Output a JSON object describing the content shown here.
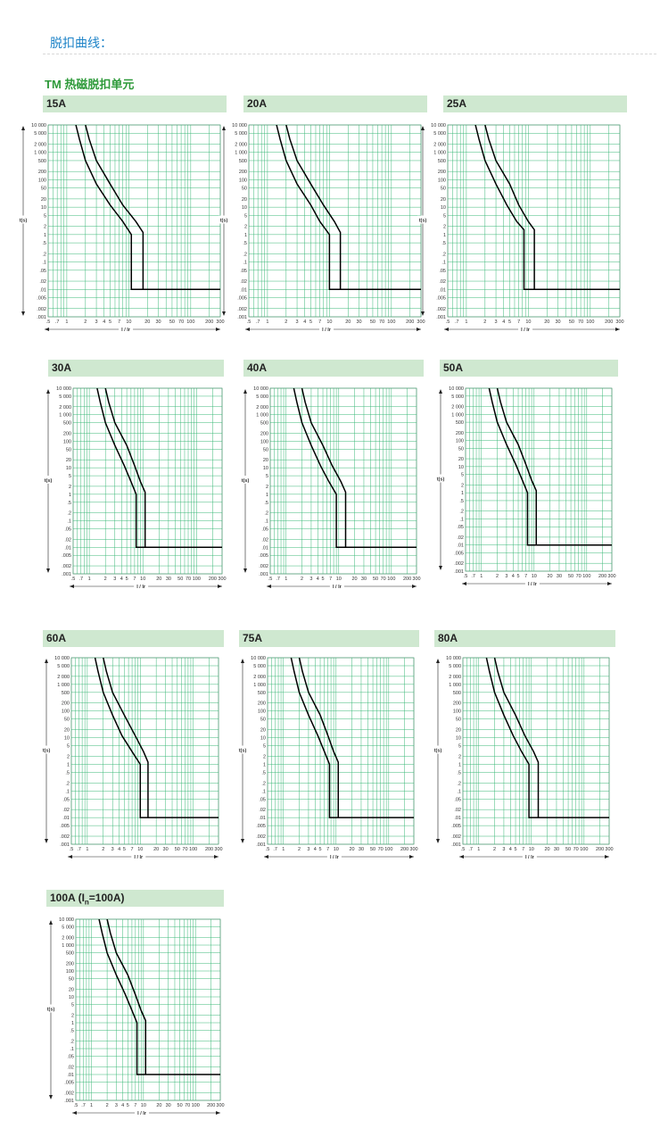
{
  "header": {
    "title": "脱扣曲线："
  },
  "section": {
    "title": "TM 热磁脱扣单元"
  },
  "colors": {
    "grid": "#3cb878",
    "curve": "#000000",
    "header_bg": "#cfe8d0",
    "title_blue": "#1f84c8",
    "title_green": "#2e9a3a"
  },
  "axis": {
    "ylabel": "t(s)",
    "xlabel": "I / Ir",
    "y_ticks": [
      "10 000",
      "5 000",
      "2 000",
      "1 000",
      "500",
      "200",
      "100",
      "50",
      "20",
      "10",
      "5",
      "2",
      "1",
      ".5",
      ".2",
      ".1",
      ".05",
      ".02",
      ".01",
      ".005",
      ".002",
      ".001"
    ],
    "x_ticks": [
      ".5",
      ".7",
      "1",
      "2",
      "3",
      "4",
      "5",
      "7",
      "10",
      "20",
      "30",
      "50",
      "70",
      "100",
      "200",
      "300"
    ]
  },
  "panels": [
    {
      "label": "15A"
    },
    {
      "label": "20A"
    },
    {
      "label": "25A"
    },
    {
      "label": "30A"
    },
    {
      "label": "40A"
    },
    {
      "label": "50A"
    },
    {
      "label": "60A"
    },
    {
      "label": "75A"
    },
    {
      "label": "80A"
    },
    {
      "label": "100A (I",
      "label_sub": "n",
      "label_tail": "=100A)"
    }
  ],
  "chart_data": [
    {
      "type": "line",
      "title": "15A",
      "xlabel": "I / Ir",
      "ylabel": "t(s)",
      "x_scale": "log",
      "y_scale": "log",
      "xlim": [
        0.5,
        300
      ],
      "ylim": [
        0.001,
        10000
      ],
      "grid": true,
      "series": [
        {
          "x": [
            1.4,
            1.6,
            2,
            3,
            5,
            8,
            11,
            11,
            11,
            300
          ],
          "y": [
            10000,
            3000,
            500,
            70,
            12,
            3,
            1,
            0.2,
            0.01,
            0.01
          ]
        },
        {
          "x": [
            2.0,
            2.3,
            3,
            5,
            8,
            13,
            17,
            17,
            17
          ],
          "y": [
            10000,
            3000,
            500,
            70,
            12,
            3,
            1.2,
            0.3,
            0.01
          ]
        }
      ]
    },
    {
      "type": "line",
      "title": "20A",
      "xlabel": "I / Ir",
      "ylabel": "t(s)",
      "x_scale": "log",
      "y_scale": "log",
      "xlim": [
        0.5,
        300
      ],
      "ylim": [
        0.001,
        10000
      ],
      "grid": true,
      "series": [
        {
          "x": [
            1.4,
            1.6,
            2,
            3,
            5,
            7,
            10,
            10,
            10,
            300
          ],
          "y": [
            10000,
            3000,
            500,
            70,
            12,
            3,
            1,
            0.3,
            0.01,
            0.01
          ]
        },
        {
          "x": [
            2.0,
            2.3,
            3,
            5,
            8,
            12,
            15,
            15,
            15
          ],
          "y": [
            10000,
            3000,
            500,
            70,
            12,
            3,
            1.2,
            0.3,
            0.01
          ]
        }
      ]
    },
    {
      "type": "line",
      "title": "25A",
      "xlabel": "I / Ir",
      "ylabel": "t(s)",
      "x_scale": "log",
      "y_scale": "log",
      "xlim": [
        0.5,
        300
      ],
      "ylim": [
        0.001,
        10000
      ],
      "grid": true,
      "series": [
        {
          "x": [
            1.4,
            1.6,
            2,
            3,
            4.5,
            6.5,
            8.5,
            8.5,
            8.5,
            300
          ],
          "y": [
            10000,
            3000,
            500,
            70,
            12,
            3,
            1.5,
            0.3,
            0.01,
            0.01
          ]
        },
        {
          "x": [
            2.0,
            2.3,
            3,
            5,
            7,
            10,
            12.5,
            12.5,
            12.5
          ],
          "y": [
            10000,
            3000,
            500,
            70,
            12,
            3,
            1.5,
            0.3,
            0.01
          ]
        }
      ]
    },
    {
      "type": "line",
      "title": "30A",
      "xlabel": "I / Ir",
      "ylabel": "t(s)",
      "x_scale": "log",
      "y_scale": "log",
      "xlim": [
        0.5,
        300
      ],
      "ylim": [
        0.001,
        10000
      ],
      "grid": true,
      "series": [
        {
          "x": [
            1.4,
            1.6,
            2,
            3,
            4.5,
            6,
            7.5,
            7.5,
            7.5,
            300
          ],
          "y": [
            10000,
            3000,
            500,
            70,
            12,
            3,
            1,
            0.3,
            0.01,
            0.01
          ]
        },
        {
          "x": [
            2.0,
            2.3,
            3,
            5,
            7,
            9,
            11,
            11,
            11
          ],
          "y": [
            10000,
            3000,
            500,
            70,
            12,
            3,
            1.2,
            0.3,
            0.01
          ]
        }
      ]
    },
    {
      "type": "line",
      "title": "40A",
      "xlabel": "I / Ir",
      "ylabel": "t(s)",
      "x_scale": "log",
      "y_scale": "log",
      "xlim": [
        0.5,
        300
      ],
      "ylim": [
        0.001,
        10000
      ],
      "grid": true,
      "series": [
        {
          "x": [
            1.4,
            1.6,
            2,
            3,
            4.5,
            6.5,
            9,
            9,
            9,
            300
          ],
          "y": [
            10000,
            3000,
            500,
            70,
            12,
            3,
            1,
            0.3,
            0.01,
            0.01
          ]
        },
        {
          "x": [
            2.0,
            2.3,
            3,
            5,
            7.5,
            11,
            13.5,
            13.5,
            13.5
          ],
          "y": [
            10000,
            3000,
            500,
            70,
            12,
            3,
            1.2,
            0.3,
            0.01
          ]
        }
      ]
    },
    {
      "type": "line",
      "title": "50A",
      "xlabel": "I / Ir",
      "ylabel": "t(s)",
      "x_scale": "log",
      "y_scale": "log",
      "xlim": [
        0.5,
        300
      ],
      "ylim": [
        0.001,
        10000
      ],
      "grid": true,
      "series": [
        {
          "x": [
            1.4,
            1.6,
            2,
            3,
            4.5,
            6,
            7.5,
            7.5,
            7.5,
            300
          ],
          "y": [
            10000,
            3000,
            500,
            70,
            12,
            3,
            1,
            0.3,
            0.01,
            0.01
          ]
        },
        {
          "x": [
            2.0,
            2.3,
            3,
            5,
            7,
            9,
            11,
            11,
            11
          ],
          "y": [
            10000,
            3000,
            500,
            70,
            12,
            3,
            1.2,
            0.3,
            0.01
          ]
        }
      ]
    },
    {
      "type": "line",
      "title": "60A",
      "xlabel": "I / Ir",
      "ylabel": "t(s)",
      "x_scale": "log",
      "y_scale": "log",
      "xlim": [
        0.5,
        300
      ],
      "ylim": [
        0.001,
        10000
      ],
      "grid": true,
      "series": [
        {
          "x": [
            1.4,
            1.6,
            2,
            3,
            4.5,
            7,
            10,
            10,
            10,
            300
          ],
          "y": [
            10000,
            3000,
            500,
            70,
            12,
            3,
            1,
            0.3,
            0.01,
            0.01
          ]
        },
        {
          "x": [
            2.0,
            2.3,
            3,
            5,
            8,
            11.5,
            14,
            14,
            14
          ],
          "y": [
            10000,
            3000,
            500,
            70,
            12,
            3,
            1.2,
            0.3,
            0.01
          ]
        }
      ]
    },
    {
      "type": "line",
      "title": "75A",
      "xlabel": "I / Ir",
      "ylabel": "t(s)",
      "x_scale": "log",
      "y_scale": "log",
      "xlim": [
        0.5,
        300
      ],
      "ylim": [
        0.001,
        10000
      ],
      "grid": true,
      "series": [
        {
          "x": [
            1.4,
            1.6,
            2,
            3,
            4.5,
            6,
            7.5,
            7.5,
            7.5,
            300
          ],
          "y": [
            10000,
            3000,
            500,
            70,
            12,
            3,
            1,
            0.3,
            0.01,
            0.01
          ]
        },
        {
          "x": [
            2.0,
            2.3,
            3,
            5,
            7,
            9,
            11,
            11,
            11
          ],
          "y": [
            10000,
            3000,
            500,
            70,
            12,
            3,
            1.2,
            0.3,
            0.01
          ]
        }
      ]
    },
    {
      "type": "line",
      "title": "80A",
      "xlabel": "I / Ir",
      "ylabel": "t(s)",
      "x_scale": "log",
      "y_scale": "log",
      "xlim": [
        0.5,
        300
      ],
      "ylim": [
        0.001,
        10000
      ],
      "grid": true,
      "series": [
        {
          "x": [
            1.4,
            1.6,
            2,
            3,
            4.5,
            6.5,
            9,
            9,
            9,
            300
          ],
          "y": [
            10000,
            3000,
            500,
            70,
            12,
            3,
            1,
            0.3,
            0.01,
            0.01
          ]
        },
        {
          "x": [
            2.0,
            2.3,
            3,
            5,
            7.5,
            11,
            13.5,
            13.5,
            13.5
          ],
          "y": [
            10000,
            3000,
            500,
            70,
            12,
            3,
            1.2,
            0.3,
            0.01
          ]
        }
      ]
    },
    {
      "type": "line",
      "title": "100A (In=100A)",
      "xlabel": "I / Ir",
      "ylabel": "t(s)",
      "x_scale": "log",
      "y_scale": "log",
      "xlim": [
        0.5,
        300
      ],
      "ylim": [
        0.001,
        10000
      ],
      "grid": true,
      "series": [
        {
          "x": [
            1.4,
            1.6,
            2,
            3,
            4.5,
            6,
            7.5,
            7.5,
            7.5,
            300
          ],
          "y": [
            10000,
            3000,
            500,
            70,
            12,
            3,
            1,
            0.3,
            0.01,
            0.01
          ]
        },
        {
          "x": [
            2.0,
            2.3,
            3,
            5,
            7,
            9,
            11,
            11,
            11
          ],
          "y": [
            10000,
            3000,
            500,
            70,
            12,
            3,
            1.2,
            0.3,
            0.01
          ]
        }
      ]
    }
  ]
}
